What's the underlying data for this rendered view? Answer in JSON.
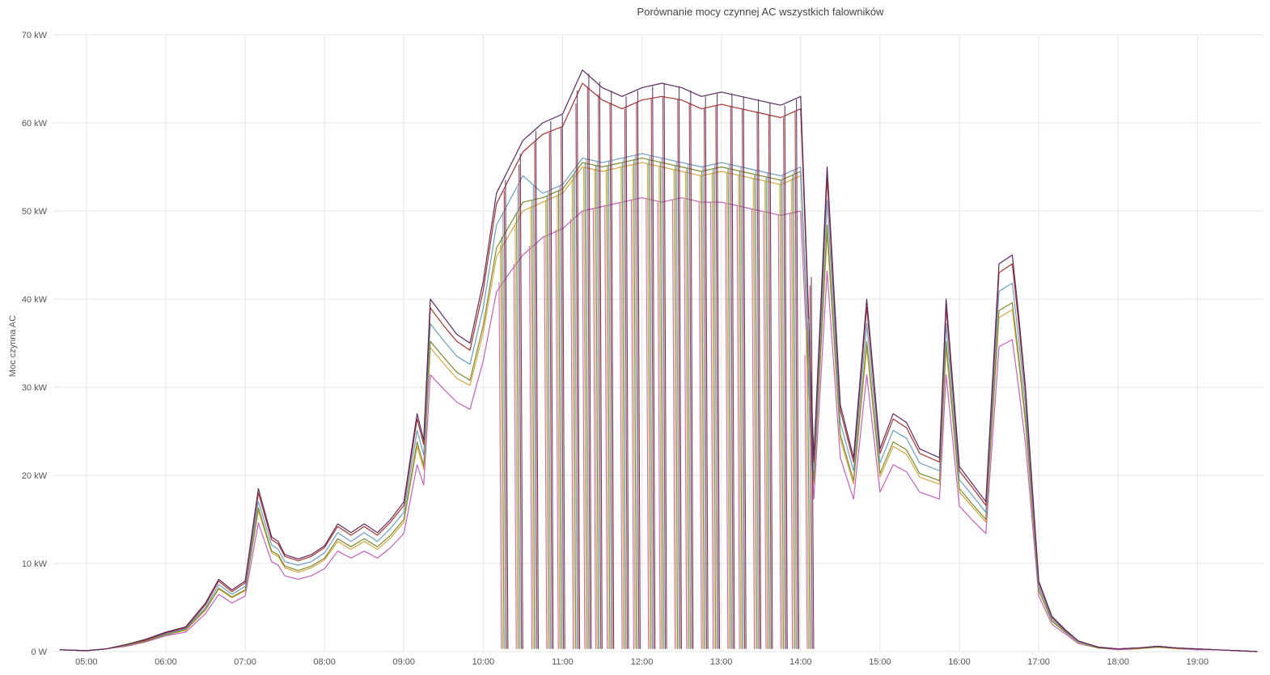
{
  "chart_data": {
    "type": "line",
    "title": "Porównanie mocy czynnej AC wszystkich falowników",
    "xlabel": "",
    "ylabel": "Moc czynna AC",
    "xlim": [
      "04:35",
      "19:50"
    ],
    "ylim": [
      0,
      70
    ],
    "y_unit": "kW",
    "y_ticks": [
      "0 W",
      "10 kW",
      "20 kW",
      "30 kW",
      "40 kW",
      "50 kW",
      "60 kW",
      "70 kW"
    ],
    "x_ticks": [
      "05:00",
      "06:00",
      "07:00",
      "08:00",
      "09:00",
      "10:00",
      "11:00",
      "12:00",
      "13:00",
      "14:00",
      "15:00",
      "16:00",
      "17:00",
      "18:00",
      "19:00"
    ],
    "grid": true,
    "legend": "none",
    "x": [
      "04:40",
      "05:00",
      "05:15",
      "05:30",
      "05:45",
      "06:00",
      "06:15",
      "06:30",
      "06:40",
      "06:50",
      "07:00",
      "07:10",
      "07:20",
      "07:25",
      "07:30",
      "07:40",
      "07:50",
      "08:00",
      "08:10",
      "08:20",
      "08:30",
      "08:40",
      "08:50",
      "09:00",
      "09:10",
      "09:15",
      "09:20",
      "09:30",
      "09:40",
      "09:50",
      "10:00",
      "10:10",
      "10:20",
      "10:30",
      "10:45",
      "11:00",
      "11:15",
      "11:30",
      "11:45",
      "12:00",
      "12:15",
      "12:30",
      "12:45",
      "13:00",
      "13:15",
      "13:30",
      "13:45",
      "14:00",
      "14:10",
      "14:20",
      "14:30",
      "14:40",
      "14:50",
      "15:00",
      "15:10",
      "15:20",
      "15:30",
      "15:45",
      "15:50",
      "16:00",
      "16:10",
      "16:20",
      "16:30",
      "16:40",
      "16:45",
      "16:50",
      "17:00",
      "17:10",
      "17:20",
      "17:30",
      "17:45",
      "18:00",
      "18:15",
      "18:30",
      "18:45",
      "19:00",
      "19:15",
      "19:30",
      "19:45"
    ],
    "series": [
      {
        "color": "#5b2a5f",
        "values": [
          0.2,
          0.1,
          0.3,
          0.8,
          1.4,
          2.2,
          2.8,
          5.5,
          8.2,
          7.0,
          8.0,
          18.5,
          13.0,
          12.5,
          11.0,
          10.5,
          11.0,
          12.0,
          14.5,
          13.5,
          14.5,
          13.5,
          15.0,
          17.0,
          27.0,
          24.0,
          40.0,
          38.0,
          36.0,
          35.0,
          42.0,
          52.0,
          55.0,
          58.0,
          60.0,
          61.0,
          66.0,
          64.0,
          63.0,
          64.0,
          64.5,
          64.0,
          63.0,
          63.5,
          63.0,
          62.5,
          62.0,
          63.0,
          22.0,
          55.0,
          28.0,
          22.0,
          40.0,
          23.0,
          27.0,
          26.0,
          23.0,
          22.0,
          40.0,
          21.0,
          19.0,
          17.0,
          44.0,
          45.0,
          38.0,
          30.0,
          8.0,
          4.0,
          2.5,
          1.2,
          0.5,
          0.3,
          0.4,
          0.6,
          0.4,
          0.3,
          0.2,
          0.1,
          0.0
        ]
      },
      {
        "color": "#a8322c",
        "values": [
          0.2,
          0.1,
          0.3,
          0.8,
          1.3,
          2.1,
          2.7,
          5.3,
          8.0,
          6.8,
          7.8,
          18.0,
          12.7,
          12.2,
          10.8,
          10.3,
          10.8,
          11.8,
          14.2,
          13.2,
          14.2,
          13.2,
          14.7,
          16.6,
          26.4,
          23.5,
          39.0,
          37.0,
          35.2,
          34.2,
          41.0,
          50.8,
          53.8,
          56.7,
          58.7,
          59.6,
          64.5,
          62.6,
          61.6,
          62.6,
          63.0,
          62.6,
          61.6,
          62.1,
          61.6,
          61.1,
          60.6,
          61.6,
          21.5,
          53.8,
          27.4,
          21.5,
          39.1,
          22.5,
          26.4,
          25.4,
          22.5,
          21.5,
          39.1,
          20.5,
          18.6,
          16.6,
          43.0,
          44.0,
          37.1,
          29.3,
          7.8,
          3.9,
          2.4,
          1.2,
          0.5,
          0.3,
          0.4,
          0.6,
          0.4,
          0.3,
          0.2,
          0.1,
          0.0
        ]
      },
      {
        "color": "#6a9fc4",
        "values": [
          0.2,
          0.1,
          0.3,
          0.8,
          1.3,
          2.0,
          2.6,
          5.0,
          7.6,
          6.5,
          7.4,
          17.0,
          12.1,
          11.6,
          10.2,
          9.8,
          10.2,
          11.2,
          13.5,
          12.5,
          13.5,
          12.5,
          14.0,
          15.8,
          25.1,
          22.3,
          37.2,
          35.3,
          33.5,
          32.6,
          39.0,
          48.4,
          51.2,
          54.0,
          52.0,
          53.0,
          56.0,
          55.5,
          56.0,
          56.5,
          56.0,
          55.5,
          55.0,
          55.5,
          55.0,
          54.5,
          54.0,
          55.0,
          20.5,
          51.2,
          26.0,
          20.5,
          37.2,
          21.4,
          25.1,
          24.2,
          21.4,
          20.5,
          37.2,
          19.5,
          17.7,
          15.8,
          40.9,
          41.8,
          35.3,
          27.9,
          7.4,
          3.7,
          2.3,
          1.1,
          0.5,
          0.3,
          0.4,
          0.6,
          0.4,
          0.3,
          0.2,
          0.1,
          0.0
        ]
      },
      {
        "color": "#7a8c2c",
        "values": [
          0.2,
          0.1,
          0.3,
          0.7,
          1.2,
          1.9,
          2.5,
          4.8,
          7.2,
          6.2,
          7.0,
          16.3,
          11.4,
          11.0,
          9.7,
          9.2,
          9.7,
          10.6,
          12.8,
          11.9,
          12.8,
          11.9,
          13.2,
          15.0,
          23.8,
          21.1,
          35.2,
          33.4,
          31.7,
          30.8,
          37.0,
          45.8,
          48.4,
          51.0,
          51.5,
          52.5,
          55.5,
          55.0,
          55.5,
          56.0,
          55.5,
          55.0,
          54.5,
          55.0,
          54.5,
          54.0,
          53.5,
          54.5,
          19.4,
          48.4,
          24.6,
          19.4,
          35.2,
          20.2,
          23.8,
          22.9,
          20.2,
          19.4,
          35.2,
          18.5,
          16.7,
          15.0,
          38.7,
          39.6,
          33.4,
          26.4,
          7.0,
          3.5,
          2.2,
          1.1,
          0.4,
          0.3,
          0.4,
          0.5,
          0.4,
          0.3,
          0.2,
          0.1,
          0.0
        ]
      },
      {
        "color": "#d9a441",
        "values": [
          0.2,
          0.1,
          0.3,
          0.7,
          1.2,
          1.9,
          2.4,
          4.7,
          7.1,
          6.1,
          6.9,
          16.0,
          11.2,
          10.8,
          9.5,
          9.0,
          9.5,
          10.4,
          12.5,
          11.6,
          12.5,
          11.6,
          12.9,
          14.7,
          23.3,
          20.7,
          34.5,
          32.7,
          31.0,
          30.2,
          36.2,
          44.8,
          47.4,
          50.0,
          51.0,
          52.0,
          55.0,
          54.5,
          55.0,
          55.5,
          55.0,
          54.5,
          54.0,
          54.5,
          54.0,
          53.5,
          53.0,
          54.0,
          19.0,
          47.4,
          24.1,
          19.0,
          34.5,
          19.8,
          23.3,
          22.4,
          19.8,
          19.0,
          34.5,
          18.1,
          16.4,
          14.7,
          37.9,
          38.8,
          32.7,
          25.8,
          6.9,
          3.4,
          2.2,
          1.0,
          0.4,
          0.3,
          0.3,
          0.5,
          0.3,
          0.3,
          0.2,
          0.1,
          0.0
        ]
      },
      {
        "color": "#c45fbf",
        "values": [
          0.2,
          0.1,
          0.3,
          0.6,
          1.1,
          1.8,
          2.2,
          4.3,
          6.5,
          5.5,
          6.3,
          14.6,
          10.2,
          9.8,
          8.6,
          8.2,
          8.6,
          9.4,
          11.4,
          10.6,
          11.4,
          10.6,
          11.8,
          13.4,
          21.2,
          18.9,
          31.4,
          29.8,
          28.3,
          27.5,
          33.0,
          40.8,
          43.0,
          45.0,
          47.0,
          48.0,
          50.0,
          50.5,
          51.0,
          51.5,
          51.0,
          51.5,
          51.0,
          51.0,
          50.5,
          50.0,
          49.5,
          50.0,
          17.3,
          43.2,
          22.0,
          17.3,
          31.4,
          18.1,
          21.2,
          20.4,
          18.1,
          17.3,
          31.4,
          16.5,
          14.9,
          13.4,
          34.6,
          35.4,
          29.8,
          23.6,
          6.3,
          3.1,
          2.0,
          0.9,
          0.4,
          0.2,
          0.3,
          0.5,
          0.3,
          0.2,
          0.2,
          0.1,
          0.0
        ]
      }
    ],
    "dropout_times": [
      "10:15",
      "10:25",
      "10:38",
      "10:48",
      "10:58",
      "11:08",
      "11:18",
      "11:25",
      "11:35",
      "11:45",
      "11:55",
      "12:05",
      "12:15",
      "12:25",
      "12:35",
      "12:45",
      "12:55",
      "13:05",
      "13:15",
      "13:25",
      "13:35",
      "13:45",
      "13:55",
      "14:05"
    ]
  }
}
